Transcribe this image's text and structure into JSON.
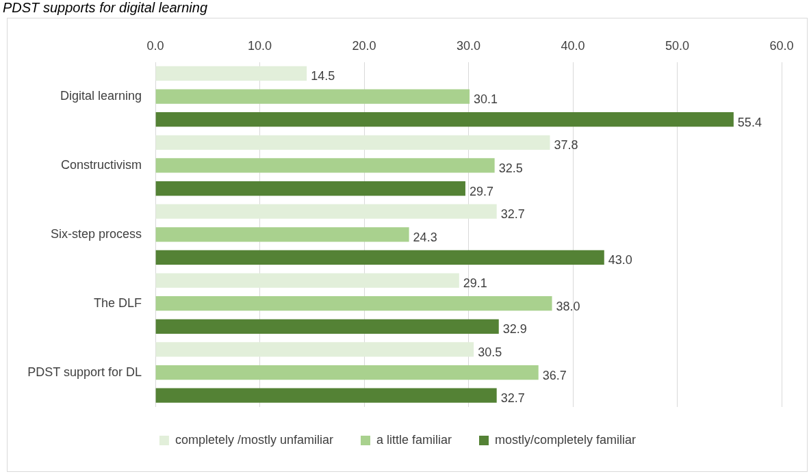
{
  "chart_data": {
    "type": "bar",
    "orientation": "horizontal",
    "title": "PDST supports for digital learning",
    "categories": [
      "Digital learning",
      "Constructivism",
      "Six-step process",
      "The DLF",
      "PDST support for DL"
    ],
    "series": [
      {
        "name": "completely /mostly unfamiliar",
        "color": "#e2efda",
        "values": [
          14.5,
          37.8,
          32.7,
          29.1,
          30.5
        ],
        "value_labels": [
          "14.5",
          "37.8",
          "32.7",
          "29.1",
          "30.5"
        ]
      },
      {
        "name": "a little familiar",
        "color": "#a9d18e",
        "values": [
          30.1,
          32.5,
          24.3,
          38.0,
          36.7
        ],
        "value_labels": [
          "30.1",
          "32.5",
          "24.3",
          "38.0",
          "36.7"
        ]
      },
      {
        "name": "mostly/completely familiar",
        "color": "#548235",
        "values": [
          55.4,
          29.7,
          43.0,
          32.9,
          32.7
        ],
        "value_labels": [
          "55.4",
          "29.7",
          "43.0",
          "32.9",
          "32.7"
        ]
      }
    ],
    "xlim": [
      0,
      60
    ],
    "xticks": [
      {
        "value": 0,
        "label": "0.0"
      },
      {
        "value": 10,
        "label": "10.0"
      },
      {
        "value": 20,
        "label": "20.0"
      },
      {
        "value": 30,
        "label": "30.0"
      },
      {
        "value": 40,
        "label": "40.0"
      },
      {
        "value": 50,
        "label": "50.0"
      },
      {
        "value": 60,
        "label": "60.0"
      }
    ],
    "grid": "x",
    "legend": "bottom"
  }
}
